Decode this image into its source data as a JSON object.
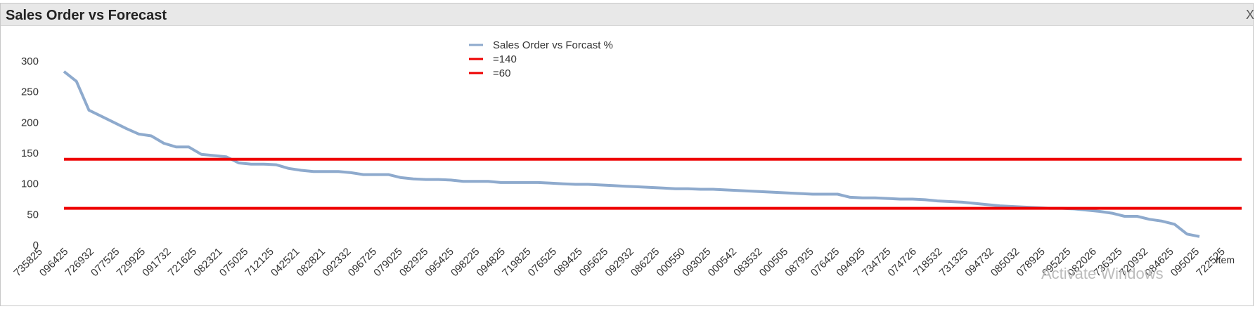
{
  "window": {
    "title": "Sales Order vs Forecast",
    "close_label": "X"
  },
  "colors": {
    "series": "#8eaacd",
    "refline": "#ee0000",
    "axis_text": "#333333"
  },
  "chart_data": {
    "type": "line",
    "title": "Sales Order vs Forecast",
    "xlabel": "Item",
    "ylabel": "",
    "ylim": [
      0,
      300
    ],
    "yticks": [
      0,
      50,
      100,
      150,
      200,
      250,
      300
    ],
    "grid": false,
    "legend_position": "top-center",
    "x_tick_labels": [
      "735825",
      "096425",
      "726932",
      "077525",
      "729925",
      "091732",
      "721625",
      "082321",
      "075025",
      "712125",
      "042521",
      "082821",
      "092332",
      "096725",
      "079025",
      "082925",
      "095425",
      "098225",
      "094825",
      "719825",
      "076525",
      "089425",
      "095625",
      "092932",
      "086225",
      "000550",
      "093025",
      "000542",
      "083532",
      "000505",
      "087925",
      "076425",
      "094925",
      "734725",
      "074726",
      "718532",
      "731325",
      "094732",
      "085032",
      "078925",
      "095225",
      "082026",
      "736325",
      "720932",
      "084625",
      "095025",
      "722525"
    ],
    "series": [
      {
        "name": "Sales Order vs Forcast %",
        "values": [
          283,
          267,
          220,
          210,
          200,
          190,
          181,
          178,
          166,
          160,
          160,
          148,
          146,
          144,
          134,
          132,
          132,
          131,
          125,
          122,
          120,
          120,
          120,
          118,
          115,
          115,
          115,
          110,
          108,
          107,
          107,
          106,
          104,
          104,
          104,
          102,
          102,
          102,
          102,
          101,
          100,
          99,
          99,
          98,
          97,
          96,
          95,
          94,
          93,
          92,
          92,
          91,
          91,
          90,
          89,
          88,
          87,
          86,
          85,
          84,
          83,
          83,
          83,
          78,
          77,
          77,
          76,
          75,
          75,
          74,
          72,
          71,
          70,
          68,
          66,
          64,
          63,
          62,
          61,
          60,
          60,
          59,
          57,
          55,
          52,
          47,
          47,
          42,
          39,
          34,
          18,
          14
        ]
      },
      {
        "name": "=140",
        "constant": 140
      },
      {
        "name": "=60",
        "constant": 60
      }
    ]
  },
  "watermark": "Activate Windows"
}
